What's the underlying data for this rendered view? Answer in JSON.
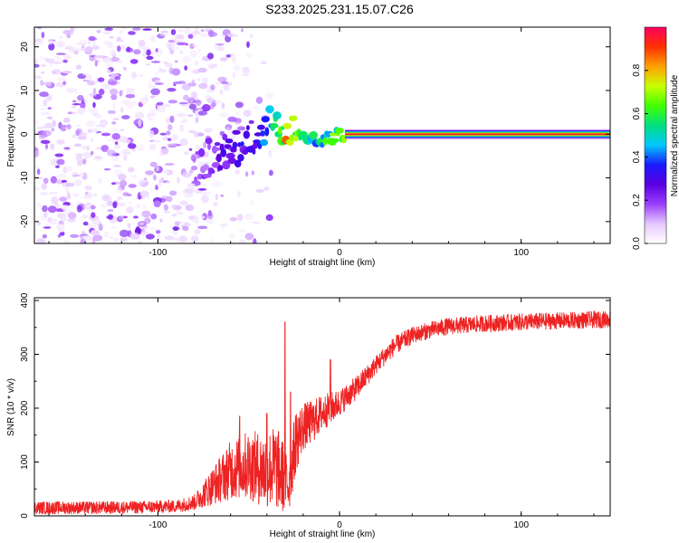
{
  "figure_title": "S233.2025.231.15.07.C26",
  "chart_data": [
    {
      "type": "heatmap",
      "name": "spectrogram",
      "xlabel": "Height of straight line (km)",
      "ylabel": "Frequency (Hz)",
      "xlim": [
        -168,
        149
      ],
      "ylim": [
        -25,
        24.5
      ],
      "xticks": [
        -100,
        0,
        100
      ],
      "yticks": [
        -20,
        -10,
        0,
        10,
        20
      ],
      "colorbar": {
        "label": "Normalized spectral amplitude",
        "range": [
          0.0,
          1.0
        ],
        "ticks": [
          0.0,
          0.2,
          0.4,
          0.6,
          0.8
        ],
        "colors": [
          "#ffffff",
          "#e6c8ff",
          "#9a40ff",
          "#5a00e0",
          "#1a1aff",
          "#00c8ff",
          "#00e080",
          "#40ff00",
          "#c8ff00",
          "#ffa000",
          "#ff3000",
          "#ff0060"
        ]
      },
      "ridge": {
        "description_points": [
          {
            "x": -80,
            "y": -7,
            "amp": 0.15
          },
          {
            "x": -65,
            "y": -4,
            "amp": 0.25
          },
          {
            "x": -55,
            "y": -3,
            "amp": 0.3
          },
          {
            "x": -45,
            "y": -1,
            "amp": 0.35
          },
          {
            "x": -38,
            "y": 3,
            "amp": 0.4
          },
          {
            "x": -30,
            "y": 0.5,
            "amp": 0.75
          },
          {
            "x": -20,
            "y": -1,
            "amp": 0.55
          },
          {
            "x": -10,
            "y": -1.5,
            "amp": 0.5
          },
          {
            "x": 0,
            "y": 0,
            "amp": 0.7
          },
          {
            "x": 149,
            "y": 0,
            "amp": 0.95
          }
        ],
        "steady_from_x": 3,
        "steady_freq": 0
      },
      "noise_region_x": [
        -168,
        -80
      ]
    },
    {
      "type": "line",
      "name": "snr",
      "xlabel": "Height of straight line (km)",
      "ylabel": "SNR (10 * v/v)",
      "xlim": [
        -168,
        149
      ],
      "ylim": [
        0,
        405
      ],
      "xticks": [
        -100,
        0,
        100
      ],
      "yticks": [
        0,
        100,
        200,
        300,
        400
      ],
      "color": "#ee2222",
      "series": [
        {
          "name": "SNR",
          "x": [
            -168,
            -140,
            -110,
            -90,
            -80,
            -70,
            -60,
            -50,
            -42,
            -35,
            -28,
            -24,
            -20,
            -15,
            -10,
            -5,
            0,
            10,
            20,
            30,
            40,
            50,
            60,
            80,
            100,
            120,
            149
          ],
          "y": [
            15,
            15,
            16,
            18,
            25,
            55,
            85,
            95,
            85,
            90,
            60,
            140,
            165,
            175,
            190,
            200,
            210,
            240,
            280,
            315,
            335,
            345,
            352,
            357,
            360,
            362,
            365
          ],
          "noise": [
            12,
            12,
            12,
            12,
            15,
            35,
            55,
            65,
            70,
            80,
            60,
            60,
            45,
            40,
            35,
            30,
            25,
            22,
            18,
            18,
            16,
            16,
            16,
            16,
            16,
            16,
            16
          ],
          "spikes": [
            {
              "x": -30,
              "y": 360
            },
            {
              "x": -55,
              "y": 185
            },
            {
              "x": -40,
              "y": 190
            },
            {
              "x": -27,
              "y": 230
            },
            {
              "x": -5,
              "y": 290
            }
          ]
        }
      ]
    }
  ]
}
